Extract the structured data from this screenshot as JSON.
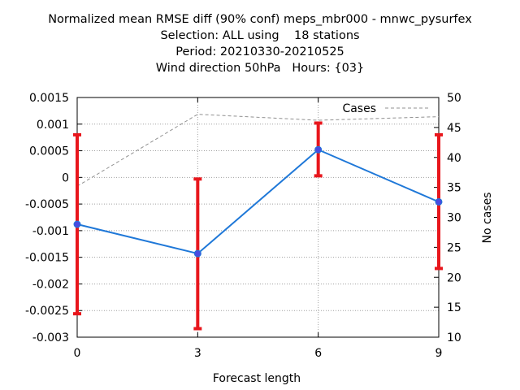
{
  "title_lines": [
    "Normalized mean RMSE diff (90% conf) meps_mbr000 - mnwc_pysurfex",
    "Selection: ALL using    18 stations",
    "Period: 20210330-20210525",
    "Wind direction 50hPa   Hours: {03}"
  ],
  "chart_data": {
    "type": "line",
    "xlabel": "Forecast length",
    "ylabel": "",
    "y2label": "No cases",
    "x": [
      0,
      3,
      6,
      9
    ],
    "x_ticks": [
      "0",
      "3",
      "6",
      "9"
    ],
    "xlim": [
      0,
      9
    ],
    "ylim": [
      -0.003,
      0.0015
    ],
    "y_ticks": [
      "0.0015",
      "0.001",
      "0.0005",
      "0",
      "-0.0005",
      "-0.001",
      "-0.0015",
      "-0.002",
      "-0.0025",
      "-0.003"
    ],
    "y2lim": [
      10,
      50
    ],
    "y2_ticks": [
      "50",
      "45",
      "40",
      "35",
      "30",
      "25",
      "20",
      "15",
      "10"
    ],
    "grid": true,
    "legend": [
      {
        "name": "Cases",
        "position": "top-right"
      }
    ],
    "series": [
      {
        "values": [
          -0.00088,
          -0.00143,
          0.00052,
          -0.00046
        ],
        "err_low": [
          -0.00256,
          -0.00284,
          3e-05,
          -0.00171
        ],
        "err_high": [
          0.0008,
          -3e-05,
          0.00102,
          0.0008
        ],
        "color": "#1f78d8",
        "err_color": "#e8161c"
      },
      {
        "name": "Cases",
        "axis": "y2",
        "values": [
          35.2,
          47.2,
          46.2,
          46.8
        ],
        "color": "#909090",
        "style": "dashed"
      }
    ]
  }
}
